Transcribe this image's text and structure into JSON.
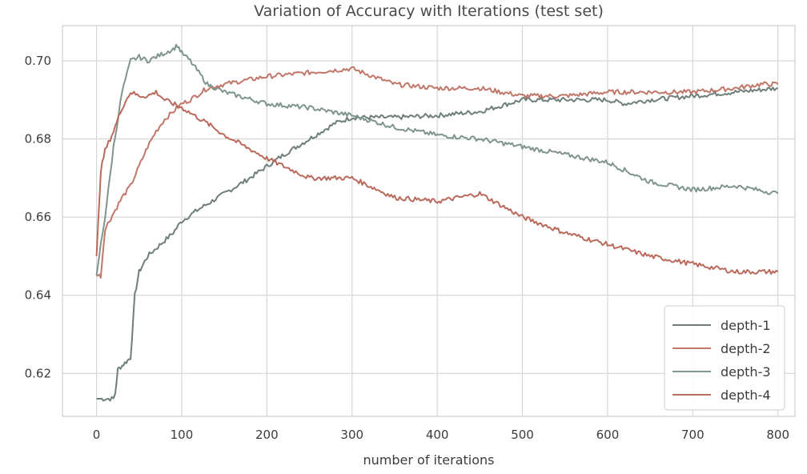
{
  "chart_data": {
    "type": "line",
    "title": "Variation of Accuracy with Iterations (test set)",
    "xlabel": "number of iterations",
    "ylabel": "",
    "xlim": [
      -40,
      820
    ],
    "ylim": [
      0.609,
      0.709
    ],
    "xticks": [
      0,
      100,
      200,
      300,
      400,
      500,
      600,
      700,
      800
    ],
    "yticks": [
      0.62,
      0.64,
      0.66,
      0.68,
      0.7
    ],
    "xtick_labels": [
      "0",
      "100",
      "200",
      "300",
      "400",
      "500",
      "600",
      "700",
      "800"
    ],
    "ytick_labels": [
      "0.62",
      "0.64",
      "0.66",
      "0.68",
      "0.70"
    ],
    "grid": true,
    "legend_position": "bottom-right",
    "series": [
      {
        "name": "depth-1",
        "color": "#6d7f78",
        "x": [
          0,
          20,
          22,
          25,
          30,
          35,
          40,
          45,
          50,
          55,
          60,
          70,
          80,
          90,
          100,
          120,
          150,
          180,
          200,
          220,
          250,
          280,
          300,
          330,
          350,
          400,
          450,
          500,
          550,
          600,
          620,
          650,
          700,
          750,
          800
        ],
        "y": [
          0.6135,
          0.6135,
          0.615,
          0.621,
          0.622,
          0.623,
          0.624,
          0.64,
          0.646,
          0.648,
          0.65,
          0.652,
          0.654,
          0.656,
          0.659,
          0.662,
          0.666,
          0.67,
          0.673,
          0.676,
          0.68,
          0.684,
          0.6855,
          0.6855,
          0.6855,
          0.686,
          0.687,
          0.69,
          0.69,
          0.69,
          0.689,
          0.69,
          0.691,
          0.692,
          0.693
        ]
      },
      {
        "name": "depth-2",
        "color": "#c0776a",
        "x": [
          0,
          5,
          10,
          15,
          20,
          30,
          40,
          50,
          60,
          70,
          80,
          90,
          100,
          110,
          130,
          150,
          200,
          250,
          300,
          350,
          400,
          450,
          500,
          550,
          600,
          650,
          700,
          750,
          780,
          800
        ],
        "y": [
          0.645,
          0.645,
          0.657,
          0.659,
          0.661,
          0.665,
          0.668,
          0.673,
          0.678,
          0.682,
          0.685,
          0.687,
          0.689,
          0.69,
          0.693,
          0.694,
          0.696,
          0.697,
          0.698,
          0.694,
          0.693,
          0.693,
          0.691,
          0.691,
          0.692,
          0.692,
          0.692,
          0.693,
          0.694,
          0.694
        ]
      },
      {
        "name": "depth-3",
        "color": "#7f948d",
        "x": [
          0,
          5,
          10,
          20,
          30,
          40,
          50,
          60,
          70,
          80,
          90,
          95,
          100,
          110,
          120,
          130,
          150,
          200,
          250,
          300,
          350,
          400,
          450,
          500,
          550,
          600,
          650,
          700,
          750,
          800
        ],
        "y": [
          0.645,
          0.653,
          0.66,
          0.678,
          0.692,
          0.7,
          0.701,
          0.7,
          0.701,
          0.702,
          0.703,
          0.704,
          0.702,
          0.7,
          0.697,
          0.694,
          0.692,
          0.689,
          0.688,
          0.686,
          0.683,
          0.681,
          0.68,
          0.678,
          0.676,
          0.674,
          0.669,
          0.667,
          0.668,
          0.666
        ]
      },
      {
        "name": "depth-4",
        "color": "#b96a5c",
        "x": [
          0,
          5,
          10,
          20,
          30,
          40,
          50,
          60,
          70,
          80,
          100,
          130,
          150,
          200,
          250,
          300,
          350,
          400,
          450,
          500,
          550,
          600,
          650,
          700,
          750,
          800
        ],
        "y": [
          0.65,
          0.672,
          0.677,
          0.682,
          0.688,
          0.692,
          0.691,
          0.691,
          0.692,
          0.69,
          0.688,
          0.684,
          0.681,
          0.675,
          0.67,
          0.67,
          0.665,
          0.664,
          0.666,
          0.66,
          0.656,
          0.653,
          0.65,
          0.648,
          0.646,
          0.646
        ]
      }
    ]
  }
}
